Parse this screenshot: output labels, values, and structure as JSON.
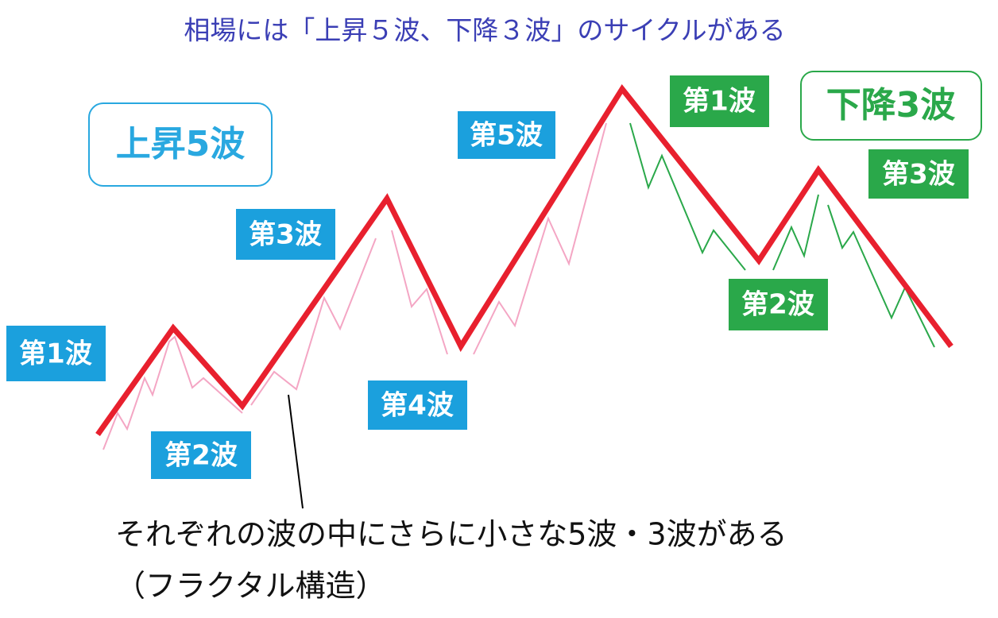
{
  "title": "相場には「上昇５波、下降３波」のサイクルがある",
  "boxes": {
    "up": "上昇5波",
    "down": "下降3波"
  },
  "up_waves": [
    "第1波",
    "第2波",
    "第3波",
    "第4波",
    "第5波"
  ],
  "down_waves": [
    "第1波",
    "第2波",
    "第3波"
  ],
  "note": [
    "それぞれの波の中にさらに小さな5波・3波がある",
    "（フラクタル構造）"
  ]
}
